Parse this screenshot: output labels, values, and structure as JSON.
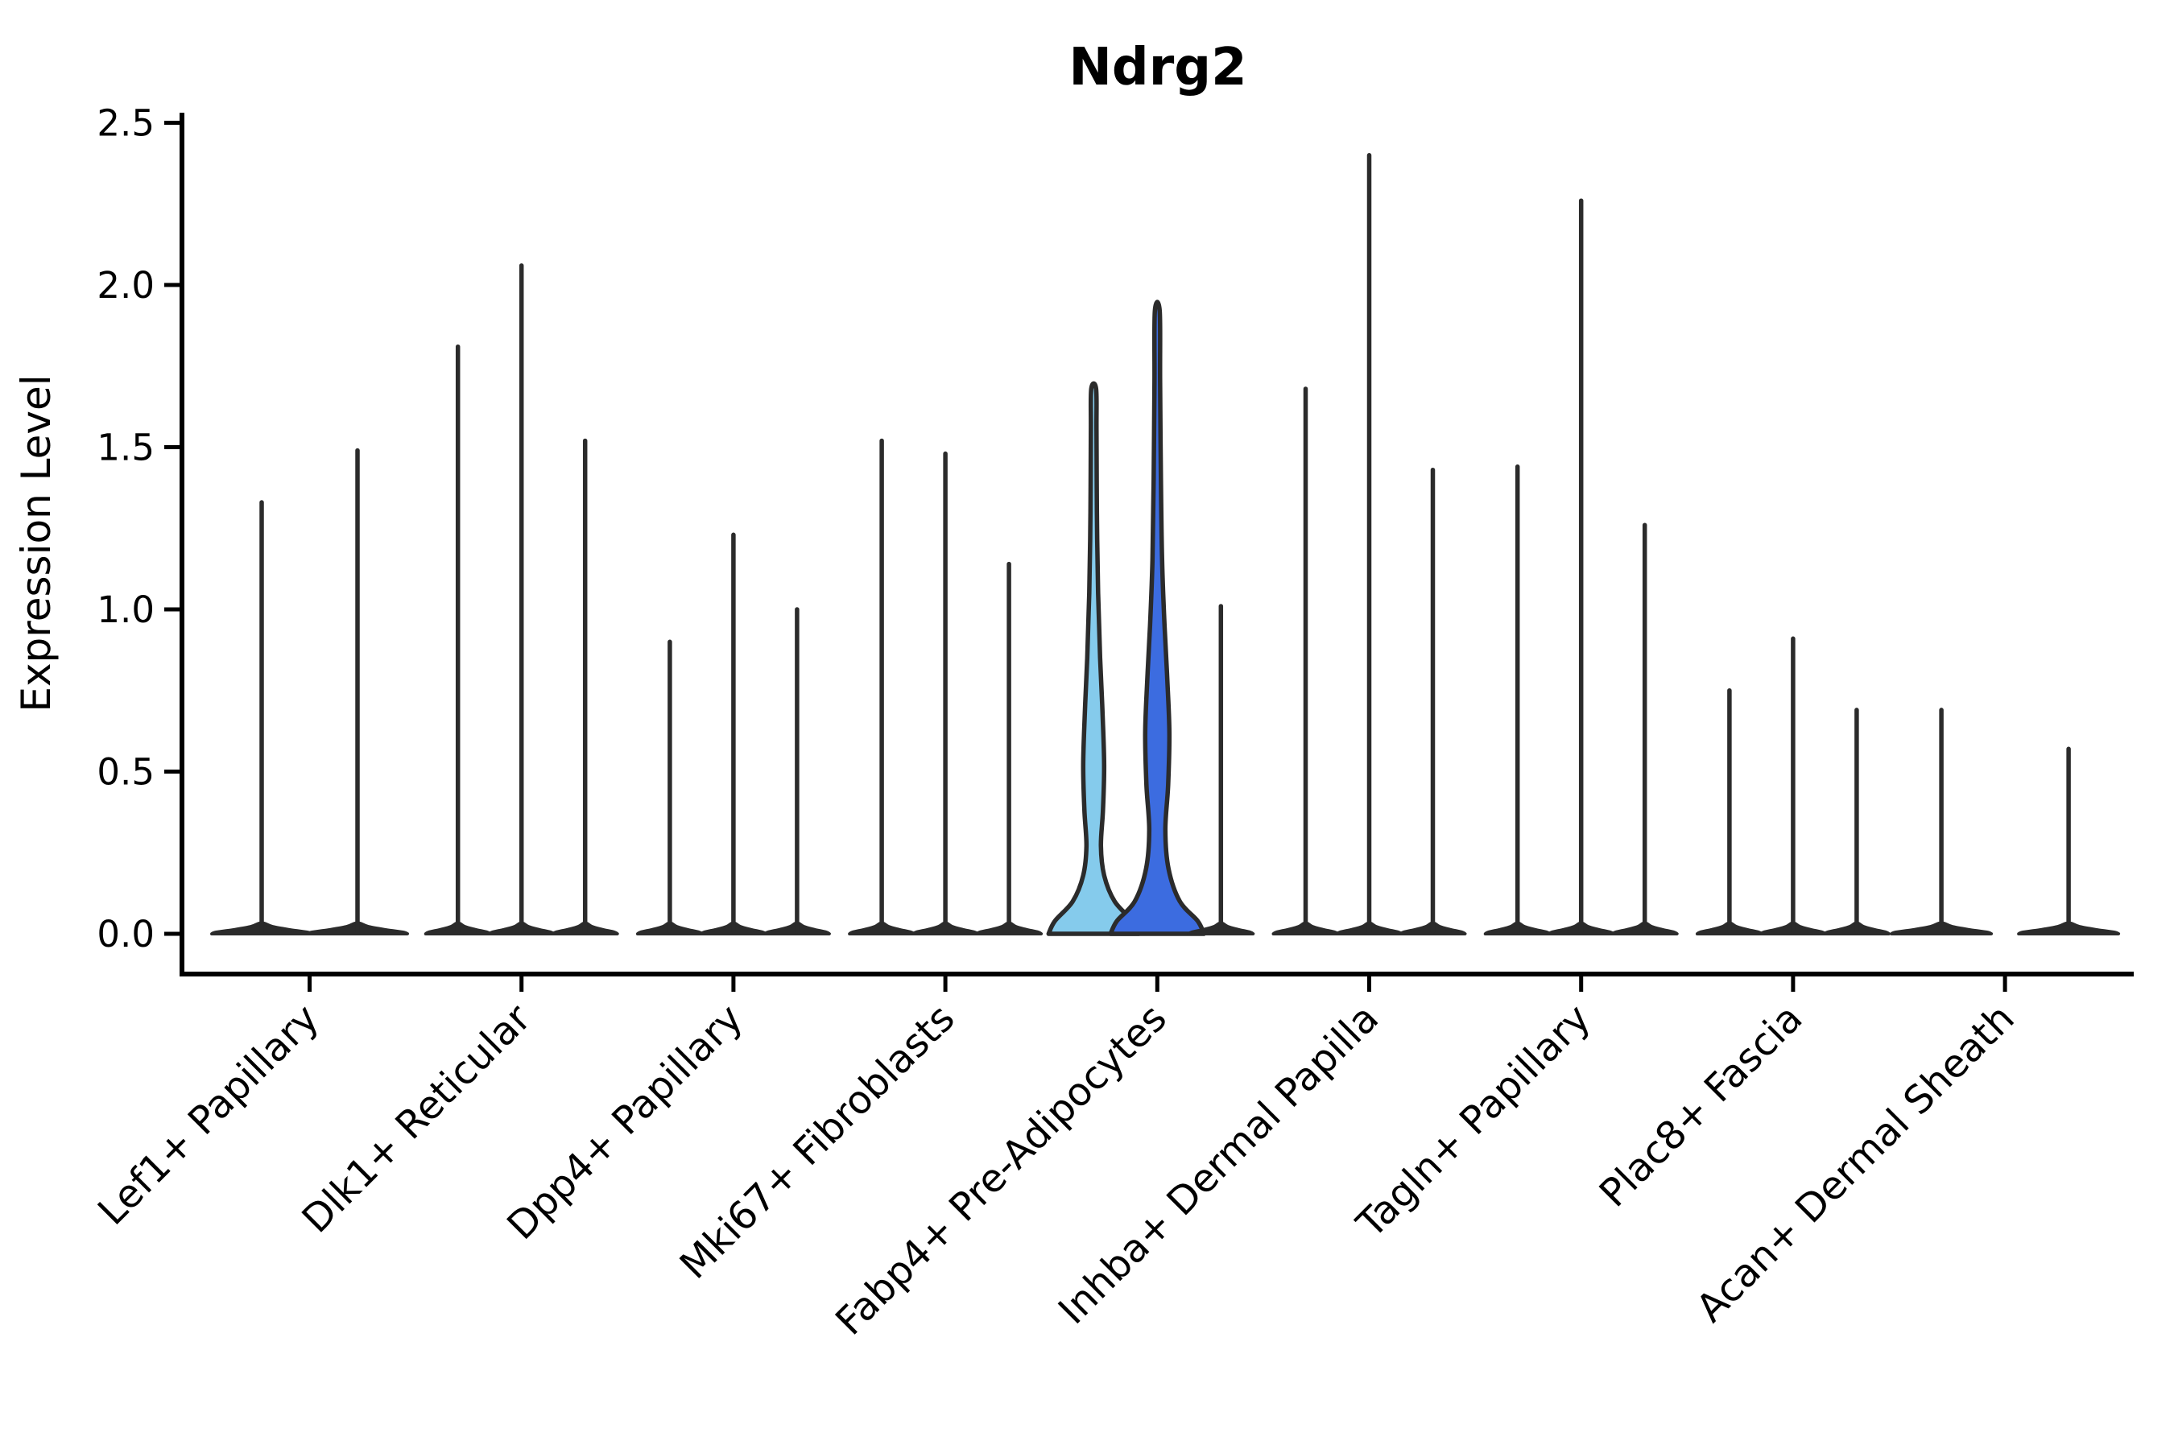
{
  "figure": {
    "title": "Ndrg2",
    "ylabel": "Expression Level"
  },
  "chart_data": {
    "type": "violin",
    "title": "Ndrg2",
    "xlabel": "",
    "ylabel": "Expression Level",
    "ylim": [
      0,
      2.5
    ],
    "grid": false,
    "legend": null,
    "yticks": {
      "values": [
        0,
        0.5,
        1.0,
        1.5,
        2.0,
        2.5
      ],
      "labels": [
        "0.0",
        "0.5",
        "1.0",
        "1.5",
        "2.0",
        "2.5"
      ]
    },
    "categories": [
      "Lef1+ Papillary",
      "Dlk1+ Reticular",
      "Dpp4+ Papillary",
      "Mki67+ Fibroblasts",
      "Fabp4+ Pre-Adipocytes",
      "Inhba+ Dermal Papilla",
      "Tagln+ Papillary",
      "Plac8+ Fascia",
      "Acan+ Dermal Sheath"
    ],
    "groups": [
      {
        "category": "Lef1+ Papillary",
        "base_halfwidth": 62,
        "violins": [
          {
            "offset": -59.5,
            "peak": 1.33,
            "fill": null
          },
          {
            "offset": 59.5,
            "peak": 1.49,
            "fill": null
          }
        ]
      },
      {
        "category": "Dlk1+ Reticular",
        "base_halfwidth": 40,
        "violins": [
          {
            "offset": -79,
            "peak": 1.81,
            "fill": null
          },
          {
            "offset": 0,
            "peak": 2.06,
            "fill": null
          },
          {
            "offset": 79,
            "peak": 1.52,
            "fill": null
          }
        ]
      },
      {
        "category": "Dpp4+ Papillary",
        "base_halfwidth": 40,
        "violins": [
          {
            "offset": -79,
            "peak": 0.9,
            "fill": null
          },
          {
            "offset": 0,
            "peak": 1.23,
            "fill": null
          },
          {
            "offset": 79,
            "peak": 1.0,
            "fill": null
          }
        ]
      },
      {
        "category": "Mki67+ Fibroblasts",
        "base_halfwidth": 40,
        "violins": [
          {
            "offset": -79,
            "peak": 1.52,
            "fill": null
          },
          {
            "offset": 0,
            "peak": 1.48,
            "fill": null
          },
          {
            "offset": 79,
            "peak": 1.14,
            "fill": null
          }
        ]
      },
      {
        "category": "Fabp4+ Pre-Adipocytes",
        "base_halfwidth": 40,
        "violins": [
          {
            "offset": -79,
            "peak": 1.68,
            "fill": "skyblue"
          },
          {
            "offset": 0,
            "peak": 1.92,
            "fill": "royalblue"
          },
          {
            "offset": 79,
            "peak": 1.01,
            "fill": null
          }
        ]
      },
      {
        "category": "Inhba+ Dermal Papilla",
        "base_halfwidth": 40,
        "violins": [
          {
            "offset": -79,
            "peak": 1.68,
            "fill": null
          },
          {
            "offset": 0,
            "peak": 2.4,
            "fill": null
          },
          {
            "offset": 79,
            "peak": 1.43,
            "fill": null
          }
        ]
      },
      {
        "category": "Tagln+ Papillary",
        "base_halfwidth": 40,
        "violins": [
          {
            "offset": -79,
            "peak": 1.44,
            "fill": null
          },
          {
            "offset": 0,
            "peak": 2.26,
            "fill": null
          },
          {
            "offset": 79,
            "peak": 1.26,
            "fill": null
          }
        ]
      },
      {
        "category": "Plac8+ Fascia",
        "base_halfwidth": 40,
        "violins": [
          {
            "offset": -79,
            "peak": 0.75,
            "fill": null
          },
          {
            "offset": 0,
            "peak": 0.91,
            "fill": null
          },
          {
            "offset": 79,
            "peak": 0.69,
            "fill": null
          }
        ]
      },
      {
        "category": "Acan+ Dermal Sheath",
        "base_halfwidth": 62,
        "violins": [
          {
            "offset": -79,
            "peak": 0.69,
            "fill": null
          },
          {
            "offset": 79,
            "peak": 0.57,
            "fill": null
          }
        ]
      }
    ],
    "kde_profiles": {
      "skyblue": [
        [
          0,
          56
        ],
        [
          0.04,
          48
        ],
        [
          0.1,
          26
        ],
        [
          0.18,
          13
        ],
        [
          0.27,
          9
        ],
        [
          0.38,
          11.5
        ],
        [
          0.52,
          13
        ],
        [
          0.68,
          11
        ],
        [
          0.85,
          8
        ],
        [
          1.05,
          5.5
        ],
        [
          1.3,
          4
        ],
        [
          1.55,
          3.5
        ],
        [
          1.68,
          3
        ]
      ],
      "royalblue": [
        [
          0,
          58
        ],
        [
          0.04,
          50
        ],
        [
          0.1,
          28
        ],
        [
          0.2,
          14
        ],
        [
          0.32,
          10
        ],
        [
          0.46,
          13.5
        ],
        [
          0.62,
          15
        ],
        [
          0.78,
          12.5
        ],
        [
          0.95,
          9
        ],
        [
          1.15,
          6
        ],
        [
          1.4,
          4.5
        ],
        [
          1.7,
          3.5
        ],
        [
          1.92,
          3
        ]
      ]
    },
    "base_blob_profile": [
      [
        0,
        55
      ],
      [
        0.005,
        50
      ],
      [
        0.013,
        30
      ],
      [
        0.022,
        12
      ],
      [
        0.032,
        3
      ]
    ],
    "colors": {
      "highlight_fill_skyblue": "#85CBEC",
      "highlight_fill_royalblue": "#3C6CE0",
      "violin_stroke": "#2b2b2b",
      "axis": "#000000",
      "background": "#ffffff"
    }
  }
}
